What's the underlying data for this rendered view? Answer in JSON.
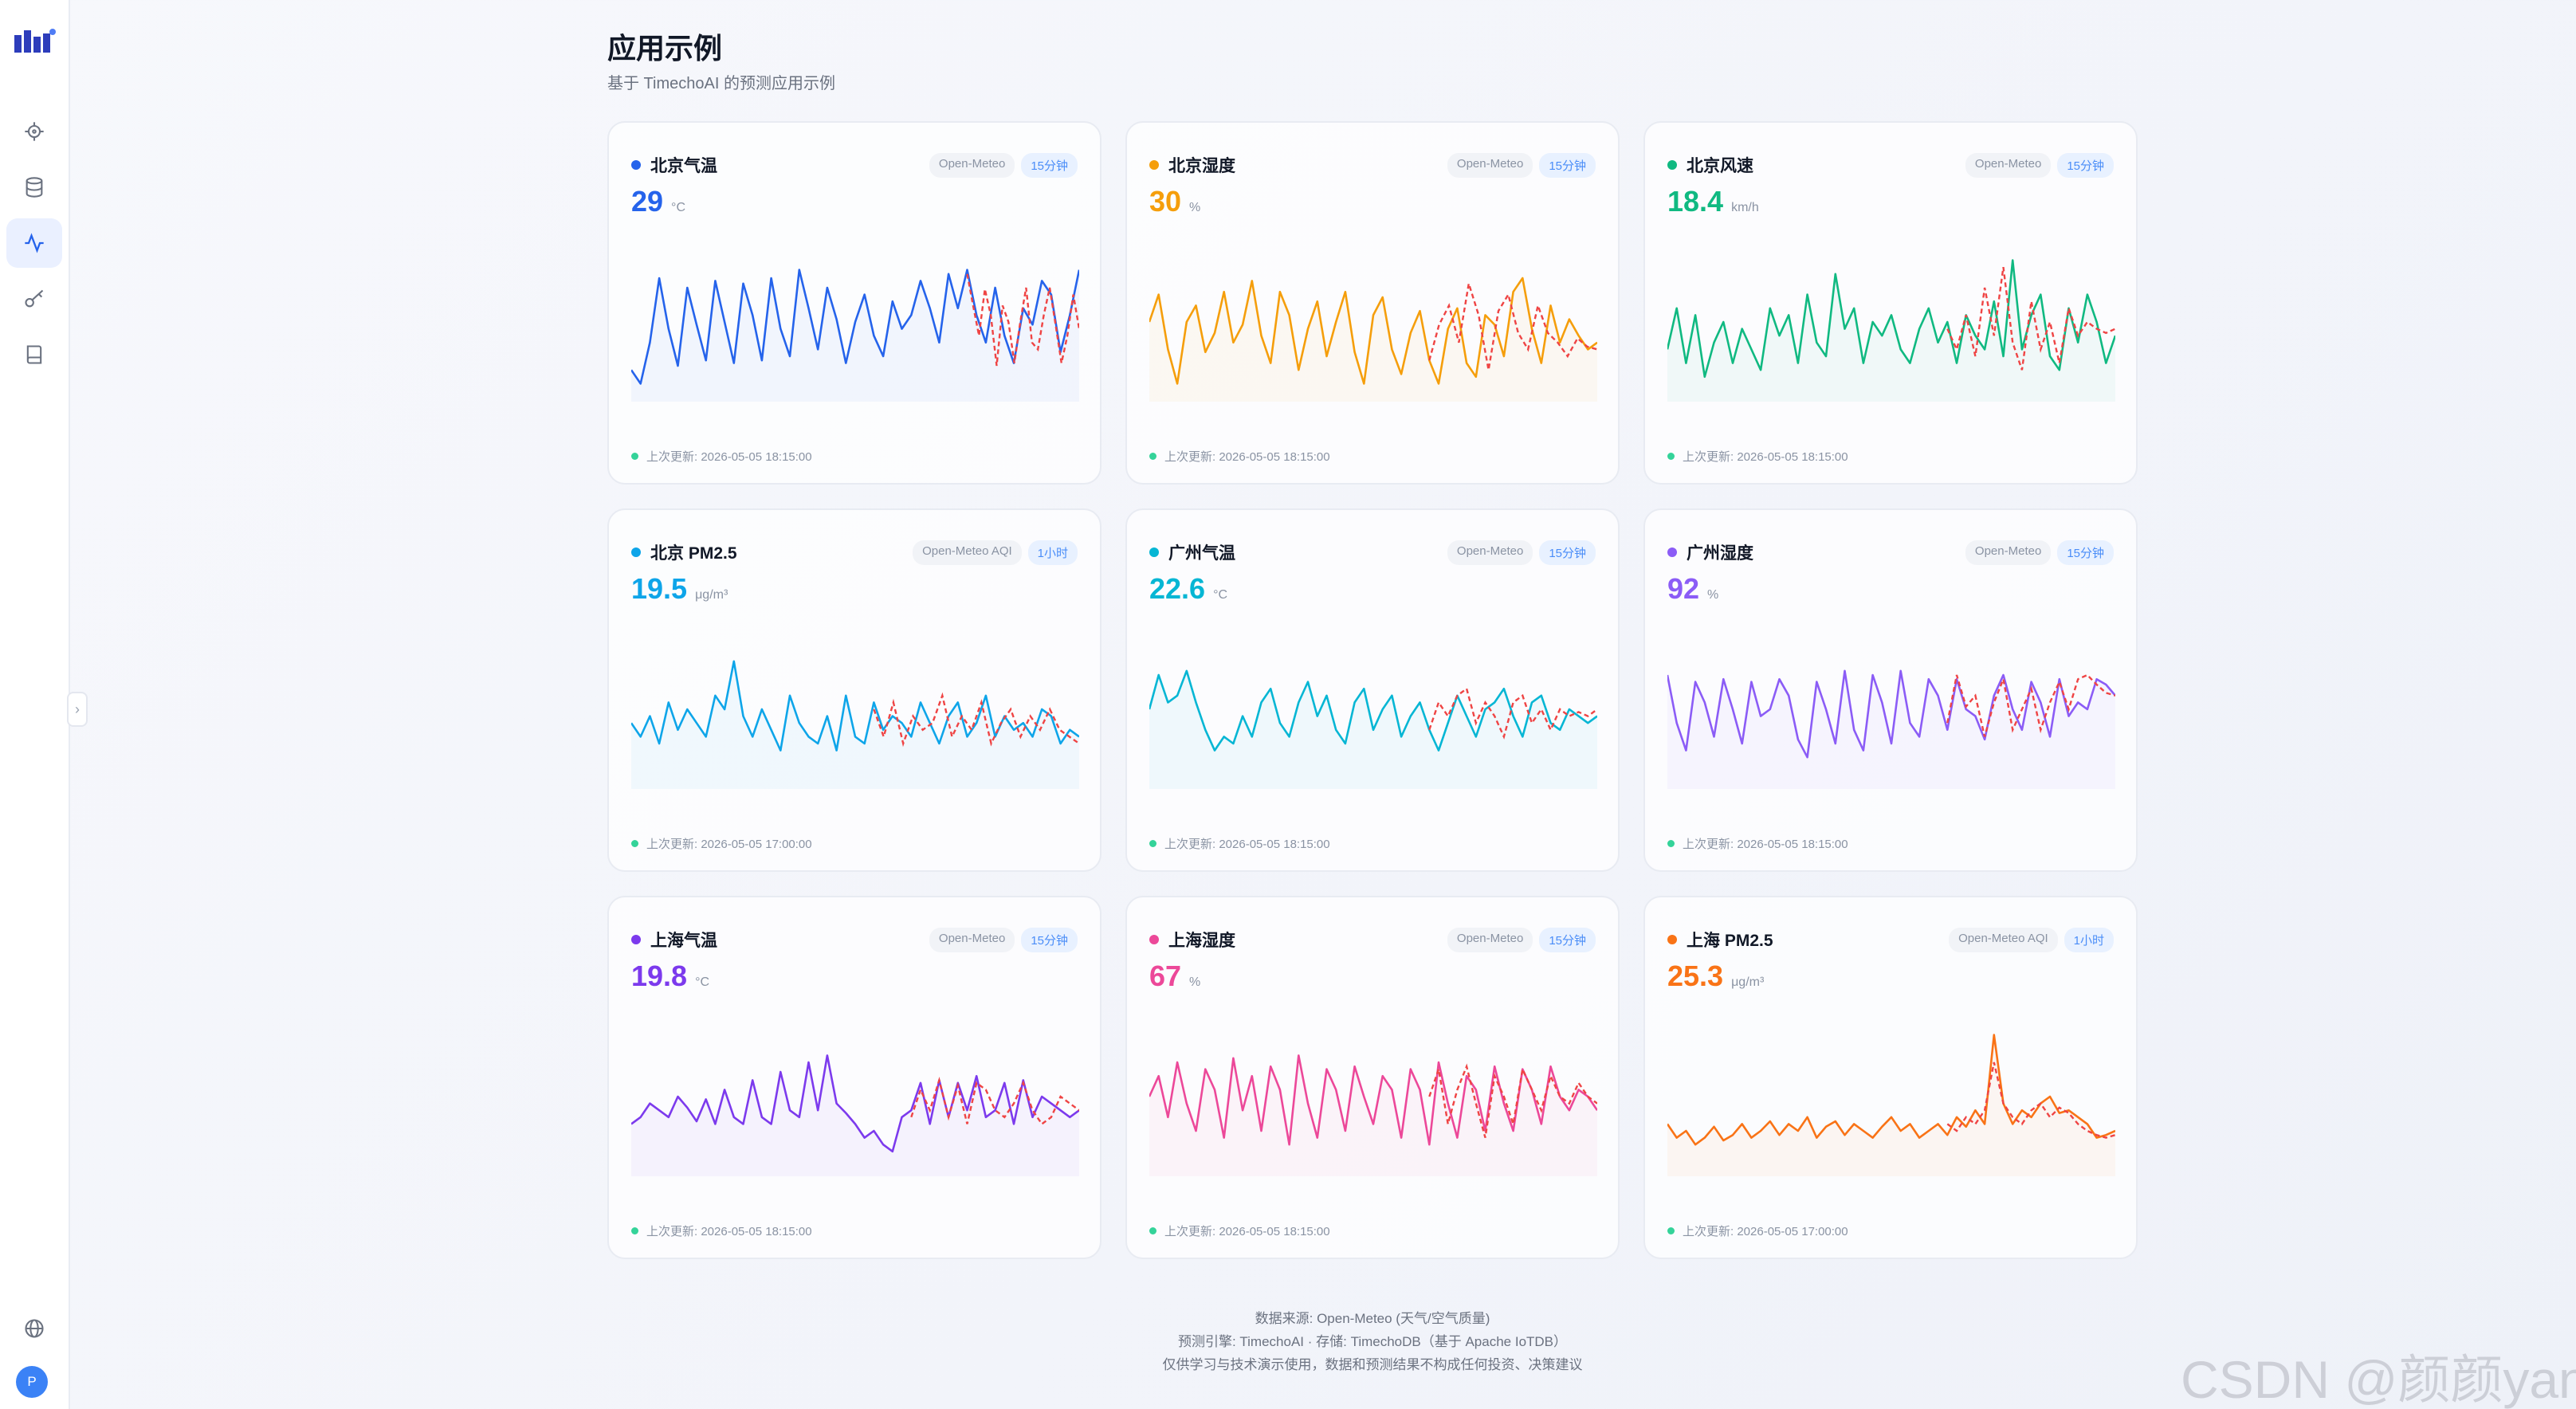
{
  "header": {
    "title": "应用示例",
    "subtitle": "基于 TimechoAI 的预测应用示例"
  },
  "sidebar": {
    "items": [
      {
        "icon": "target-icon"
      },
      {
        "icon": "database-icon"
      },
      {
        "icon": "activity-icon",
        "active": true
      },
      {
        "icon": "key-icon"
      },
      {
        "icon": "book-icon"
      }
    ],
    "bottom": {
      "icon": "globe-icon",
      "avatar_letter": "P"
    }
  },
  "cards": [
    {
      "title": "北京气温",
      "source": "Open-Meteo",
      "freq": "15分钟",
      "value": "29",
      "unit": "°C",
      "color": "#2563eb",
      "updated": "上次更新: 2026-05-05 18:15:00"
    },
    {
      "title": "北京湿度",
      "source": "Open-Meteo",
      "freq": "15分钟",
      "value": "30",
      "unit": "%",
      "color": "#f59e0b",
      "updated": "上次更新: 2026-05-05 18:15:00"
    },
    {
      "title": "北京风速",
      "source": "Open-Meteo",
      "freq": "15分钟",
      "value": "18.4",
      "unit": "km/h",
      "color": "#10b981",
      "updated": "上次更新: 2026-05-05 18:15:00"
    },
    {
      "title": "北京 PM2.5",
      "source": "Open-Meteo AQI",
      "freq": "1小时",
      "value": "19.5",
      "unit": "μg/m³",
      "color": "#0ea5e9",
      "updated": "上次更新: 2026-05-05 17:00:00"
    },
    {
      "title": "广州气温",
      "source": "Open-Meteo",
      "freq": "15分钟",
      "value": "22.6",
      "unit": "°C",
      "color": "#06b6d4",
      "updated": "上次更新: 2026-05-05 18:15:00"
    },
    {
      "title": "广州湿度",
      "source": "Open-Meteo",
      "freq": "15分钟",
      "value": "92",
      "unit": "%",
      "color": "#8b5cf6",
      "updated": "上次更新: 2026-05-05 18:15:00"
    },
    {
      "title": "上海气温",
      "source": "Open-Meteo",
      "freq": "15分钟",
      "value": "19.8",
      "unit": "°C",
      "color": "#7c3aed",
      "updated": "上次更新: 2026-05-05 18:15:00"
    },
    {
      "title": "上海湿度",
      "source": "Open-Meteo",
      "freq": "15分钟",
      "value": "67",
      "unit": "%",
      "color": "#ec4899",
      "updated": "上次更新: 2026-05-05 18:15:00"
    },
    {
      "title": "上海 PM2.5",
      "source": "Open-Meteo AQI",
      "freq": "1小时",
      "value": "25.3",
      "unit": "μg/m³",
      "color": "#f97316",
      "updated": "上次更新: 2026-05-05 17:00:00"
    }
  ],
  "footer": {
    "line1": "数据来源: Open-Meteo (天气/空气质量)",
    "line2": "预测引擎: TimechoAI · 存储: TimechoDB（基于 Apache IoTDB）",
    "line3": "仅供学习与技术演示使用，数据和预测结果不构成任何投资、决策建议"
  },
  "watermark": "CSDN @颜颜yan_",
  "forecast_color": "#ef4444",
  "chart_data": [
    {
      "type": "line",
      "name": "北京气温",
      "series": [
        {
          "values": [
            0.15,
            0.05,
            0.35,
            0.82,
            0.45,
            0.18,
            0.75,
            0.48,
            0.22,
            0.8,
            0.5,
            0.2,
            0.78,
            0.55,
            0.22,
            0.82,
            0.45,
            0.25,
            0.88,
            0.6,
            0.3,
            0.75,
            0.52,
            0.2,
            0.5,
            0.7,
            0.4,
            0.25,
            0.65,
            0.45,
            0.55,
            0.8,
            0.6,
            0.35,
            0.85,
            0.6,
            0.88,
            0.55,
            0.35,
            0.75,
            0.4,
            0.2,
            0.6,
            0.48,
            0.8,
            0.7,
            0.28,
            0.55,
            0.88
          ]
        },
        {
          "offset": 36,
          "values": [
            0.85,
            0.62,
            0.4,
            0.74,
            0.55,
            0.18,
            0.62,
            0.5,
            0.2,
            0.5,
            0.75,
            0.35,
            0.3,
            0.55,
            0.75,
            0.48,
            0.2,
            0.4,
            0.7,
            0.45
          ]
        }
      ]
    },
    {
      "type": "line",
      "name": "北京湿度",
      "series": [
        {
          "values": [
            0.5,
            0.7,
            0.3,
            0.05,
            0.5,
            0.62,
            0.28,
            0.42,
            0.72,
            0.35,
            0.48,
            0.8,
            0.4,
            0.2,
            0.72,
            0.55,
            0.15,
            0.45,
            0.65,
            0.25,
            0.5,
            0.72,
            0.28,
            0.05,
            0.55,
            0.68,
            0.3,
            0.12,
            0.42,
            0.58,
            0.22,
            0.05,
            0.45,
            0.6,
            0.2,
            0.1,
            0.55,
            0.48,
            0.25,
            0.72,
            0.82,
            0.45,
            0.2,
            0.62,
            0.35,
            0.52,
            0.4,
            0.3,
            0.35
          ]
        },
        {
          "offset": 30,
          "values": [
            0.22,
            0.48,
            0.62,
            0.35,
            0.78,
            0.55,
            0.15,
            0.58,
            0.7,
            0.42,
            0.3,
            0.62,
            0.42,
            0.35,
            0.25,
            0.38,
            0.32,
            0.3
          ]
        }
      ]
    },
    {
      "type": "line",
      "name": "北京风速",
      "series": [
        {
          "values": [
            0.3,
            0.6,
            0.2,
            0.55,
            0.1,
            0.35,
            0.5,
            0.2,
            0.45,
            0.3,
            0.15,
            0.6,
            0.4,
            0.55,
            0.2,
            0.7,
            0.35,
            0.25,
            0.85,
            0.45,
            0.6,
            0.2,
            0.5,
            0.4,
            0.55,
            0.3,
            0.2,
            0.45,
            0.6,
            0.35,
            0.5,
            0.2,
            0.55,
            0.4,
            0.3,
            0.65,
            0.25,
            0.95,
            0.3,
            0.55,
            0.7,
            0.25,
            0.15,
            0.6,
            0.35,
            0.7,
            0.5,
            0.2,
            0.4
          ]
        },
        {
          "offset": 30,
          "values": [
            0.45,
            0.3,
            0.55,
            0.25,
            0.75,
            0.4,
            0.9,
            0.35,
            0.15,
            0.65,
            0.3,
            0.5,
            0.2,
            0.6,
            0.4,
            0.5,
            0.45,
            0.42,
            0.45
          ]
        }
      ]
    },
    {
      "type": "line",
      "name": "北京 PM2.5",
      "series": [
        {
          "values": [
            0.4,
            0.3,
            0.45,
            0.25,
            0.55,
            0.35,
            0.5,
            0.4,
            0.3,
            0.6,
            0.5,
            0.85,
            0.45,
            0.3,
            0.5,
            0.35,
            0.2,
            0.6,
            0.4,
            0.3,
            0.25,
            0.45,
            0.2,
            0.6,
            0.3,
            0.25,
            0.55,
            0.35,
            0.45,
            0.4,
            0.3,
            0.55,
            0.4,
            0.25,
            0.45,
            0.55,
            0.3,
            0.4,
            0.6,
            0.3,
            0.45,
            0.35,
            0.4,
            0.3,
            0.5,
            0.45,
            0.25,
            0.35,
            0.3
          ]
        },
        {
          "offset": 26,
          "values": [
            0.5,
            0.3,
            0.55,
            0.25,
            0.45,
            0.35,
            0.4,
            0.6,
            0.3,
            0.45,
            0.35,
            0.55,
            0.25,
            0.4,
            0.5,
            0.3,
            0.45,
            0.35,
            0.5,
            0.35,
            0.3,
            0.25
          ]
        }
      ]
    },
    {
      "type": "line",
      "name": "广州气温",
      "series": [
        {
          "values": [
            0.5,
            0.75,
            0.55,
            0.6,
            0.78,
            0.55,
            0.35,
            0.2,
            0.3,
            0.25,
            0.45,
            0.3,
            0.55,
            0.65,
            0.4,
            0.3,
            0.55,
            0.7,
            0.45,
            0.6,
            0.35,
            0.25,
            0.55,
            0.65,
            0.35,
            0.5,
            0.6,
            0.3,
            0.45,
            0.55,
            0.35,
            0.2,
            0.4,
            0.6,
            0.45,
            0.3,
            0.5,
            0.55,
            0.65,
            0.45,
            0.3,
            0.55,
            0.6,
            0.4,
            0.35,
            0.5,
            0.45,
            0.4,
            0.45
          ]
        },
        {
          "offset": 30,
          "values": [
            0.35,
            0.55,
            0.45,
            0.6,
            0.65,
            0.4,
            0.55,
            0.45,
            0.3,
            0.55,
            0.6,
            0.4,
            0.5,
            0.35,
            0.5,
            0.45,
            0.48,
            0.45,
            0.5
          ]
        }
      ]
    },
    {
      "type": "line",
      "name": "广州湿度",
      "series": [
        {
          "values": [
            0.75,
            0.4,
            0.2,
            0.7,
            0.55,
            0.3,
            0.72,
            0.5,
            0.25,
            0.7,
            0.45,
            0.5,
            0.72,
            0.6,
            0.28,
            0.15,
            0.7,
            0.5,
            0.25,
            0.78,
            0.35,
            0.2,
            0.75,
            0.55,
            0.25,
            0.78,
            0.4,
            0.3,
            0.72,
            0.6,
            0.35,
            0.72,
            0.5,
            0.45,
            0.28,
            0.6,
            0.75,
            0.5,
            0.35,
            0.7,
            0.55,
            0.3,
            0.72,
            0.45,
            0.55,
            0.5,
            0.72,
            0.68,
            0.6
          ]
        },
        {
          "offset": 30,
          "values": [
            0.4,
            0.75,
            0.52,
            0.6,
            0.3,
            0.55,
            0.72,
            0.35,
            0.5,
            0.65,
            0.35,
            0.55,
            0.7,
            0.5,
            0.72,
            0.75,
            0.68,
            0.62,
            0.6
          ]
        }
      ]
    },
    {
      "type": "line",
      "name": "上海气温",
      "series": [
        {
          "values": [
            0.3,
            0.35,
            0.45,
            0.4,
            0.35,
            0.5,
            0.42,
            0.32,
            0.48,
            0.3,
            0.55,
            0.35,
            0.3,
            0.62,
            0.35,
            0.3,
            0.68,
            0.4,
            0.35,
            0.75,
            0.4,
            0.8,
            0.45,
            0.38,
            0.3,
            0.2,
            0.25,
            0.15,
            0.1,
            0.35,
            0.4,
            0.6,
            0.3,
            0.62,
            0.35,
            0.6,
            0.4,
            0.65,
            0.35,
            0.4,
            0.6,
            0.3,
            0.62,
            0.35,
            0.5,
            0.45,
            0.4,
            0.35,
            0.4
          ]
        },
        {
          "offset": 30,
          "values": [
            0.35,
            0.55,
            0.4,
            0.62,
            0.35,
            0.58,
            0.3,
            0.6,
            0.55,
            0.4,
            0.35,
            0.45,
            0.6,
            0.4,
            0.3,
            0.35,
            0.5,
            0.45,
            0.4
          ]
        }
      ]
    },
    {
      "type": "line",
      "name": "上海湿度",
      "series": [
        {
          "values": [
            0.5,
            0.65,
            0.35,
            0.75,
            0.45,
            0.25,
            0.7,
            0.55,
            0.2,
            0.78,
            0.4,
            0.65,
            0.25,
            0.72,
            0.55,
            0.15,
            0.8,
            0.45,
            0.2,
            0.7,
            0.55,
            0.25,
            0.72,
            0.5,
            0.3,
            0.65,
            0.55,
            0.2,
            0.7,
            0.55,
            0.15,
            0.75,
            0.45,
            0.2,
            0.65,
            0.55,
            0.25,
            0.72,
            0.45,
            0.25,
            0.7,
            0.55,
            0.3,
            0.72,
            0.5,
            0.4,
            0.55,
            0.5,
            0.4
          ]
        },
        {
          "offset": 30,
          "values": [
            0.5,
            0.7,
            0.3,
            0.55,
            0.72,
            0.45,
            0.2,
            0.65,
            0.5,
            0.3,
            0.7,
            0.55,
            0.4,
            0.65,
            0.5,
            0.45,
            0.6,
            0.5,
            0.45
          ]
        }
      ]
    },
    {
      "type": "line",
      "name": "上海 PM2.5",
      "series": [
        {
          "values": [
            0.3,
            0.2,
            0.25,
            0.15,
            0.2,
            0.28,
            0.18,
            0.22,
            0.3,
            0.2,
            0.25,
            0.32,
            0.22,
            0.3,
            0.25,
            0.35,
            0.2,
            0.28,
            0.32,
            0.22,
            0.3,
            0.25,
            0.2,
            0.28,
            0.35,
            0.25,
            0.3,
            0.2,
            0.25,
            0.3,
            0.22,
            0.35,
            0.28,
            0.4,
            0.3,
            0.95,
            0.45,
            0.3,
            0.4,
            0.35,
            0.45,
            0.5,
            0.38,
            0.4,
            0.35,
            0.3,
            0.2,
            0.22,
            0.25
          ]
        },
        {
          "offset": 30,
          "values": [
            0.3,
            0.25,
            0.35,
            0.3,
            0.4,
            0.75,
            0.45,
            0.35,
            0.3,
            0.4,
            0.45,
            0.35,
            0.42,
            0.38,
            0.3,
            0.25,
            0.22,
            0.2,
            0.22
          ]
        }
      ]
    }
  ]
}
